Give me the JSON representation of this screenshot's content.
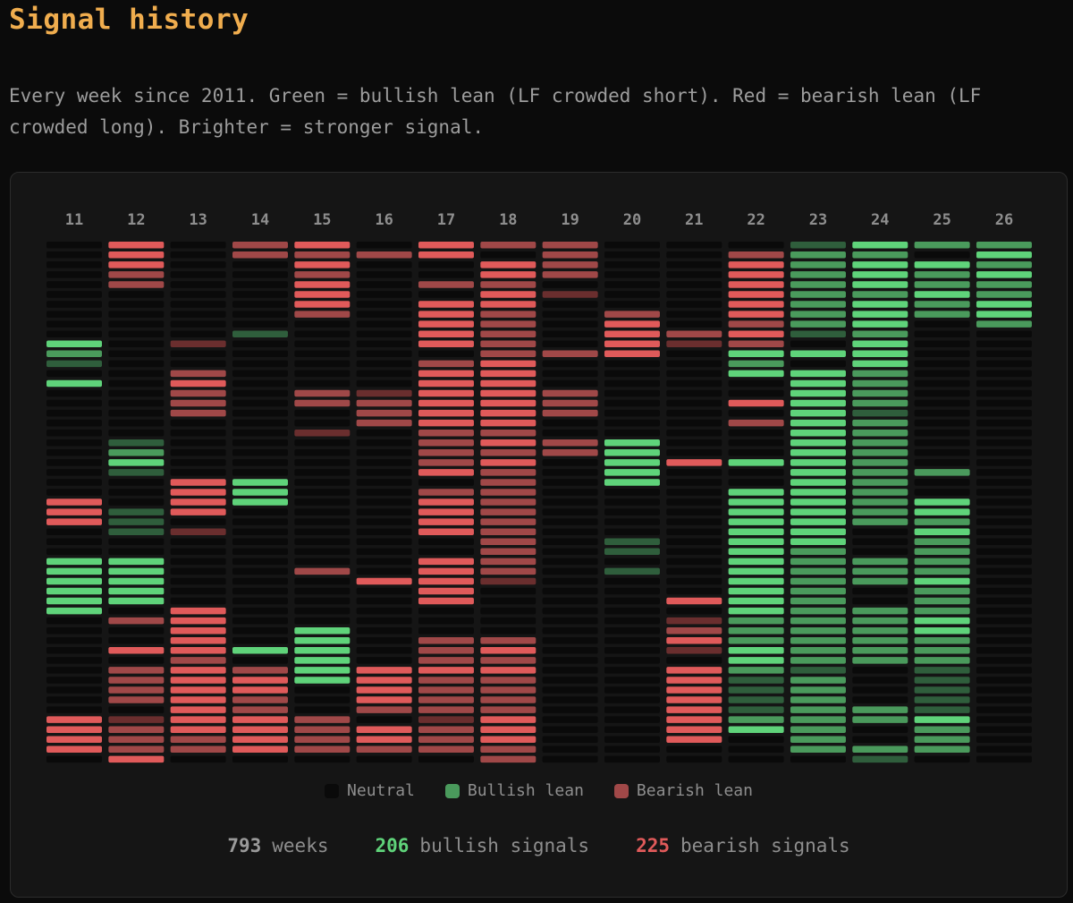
{
  "title": "Signal history",
  "subtitle": "Every week since 2011. Green = bullish lean (LF crowded short). Red = bearish lean (LF crowded long). Brighter = stronger signal.",
  "legend": [
    {
      "label": "Neutral",
      "color": "#0a0a0a"
    },
    {
      "label": "Bullish lean",
      "color": "#4a9a5c"
    },
    {
      "label": "Bearish lean",
      "color": "#a04848"
    }
  ],
  "stats": [
    {
      "value": "793",
      "label": "weeks",
      "color": "#9a9a9a"
    },
    {
      "value": "206",
      "label": "bullish signals",
      "color": "#5fd37a"
    },
    {
      "value": "225",
      "label": "bearish signals",
      "color": "#e05a5a"
    }
  ],
  "chart_data": {
    "type": "heatmap",
    "columns": [
      "11",
      "12",
      "13",
      "14",
      "15",
      "16",
      "17",
      "18",
      "19",
      "20",
      "21",
      "22",
      "23",
      "24",
      "25",
      "26"
    ],
    "encoding": {
      "0": "neutral",
      "1": "bullish lean",
      "2": "bullish lean (strong)",
      "-1": "bearish lean",
      "-2": "bearish lean (strong)"
    },
    "colors": {
      "0": "#0a0a0a",
      "1": "#2f5e3c",
      "2": "#4a9a5c",
      "3": "#5fd37a",
      "-1": "#6a2e2e",
      "-2": "#a04848",
      "-3": "#e05a5a"
    },
    "rows": [
      "0 -3 0 -2 -3 0 -3 -2 -2 0 0 0 1 3 2 2",
      "0 -3 0 -2 -2 -2 -3 0 -2 0 0 -2 2 2 0 3",
      "0 -3 0 0 -3 0 0 -3 -2 0 0 -3 2 3 3 2",
      "0 -2 0 0 -2 0 0 -3 -2 0 0 -3 2 3 2 3",
      "0 -2 0 0 -3 0 -2 -2 0 0 0 -3 2 3 2 2",
      "0 0 0 0 -3 0 0 -3 -1 0 0 -3 2 2 3 2",
      "0 0 0 0 -3 0 -3 -3 0 0 0 -3 2 3 2 3",
      "0 0 0 0 -2 0 -3 -2 0 -2 0 -3 2 3 2 3",
      "0 0 0 0 0 0 -3 -2 0 -3 0 -2 2 3 0 2",
      "0 0 0 1 0 0 -3 -2 0 -3 -2 -3 1 2 0 0",
      "3 0 -1 0 0 0 -3 -2 0 -3 -1 -2 0 3 0 0",
      "2 0 0 0 0 0 0 -2 -2 -3 0 3 3 3 0 0",
      "1 0 0 0 0 0 -2 -3 0 0 0 2 0 3 0 0",
      "0 0 -2 0 0 0 -3 -3 0 0 0 3 3 2 0 0",
      "3 0 -3 0 0 0 -3 -3 0 0 0 0 3 2 0 0",
      "0 0 -2 0 -2 -1 -3 -3 -2 0 0 0 3 2 0 0",
      "0 0 -2 0 -2 -2 -3 -3 -2 0 0 -3 3 2 0 0",
      "0 0 -2 0 0 -2 -3 -3 -2 0 0 0 3 1 0 0",
      "0 0 0 0 0 -2 -3 -3 0 0 0 -2 3 2 0 0",
      "0 0 0 0 -1 0 -2 -2 0 0 0 0 3 2 0 0",
      "0 1 0 0 0 0 -2 -3 -2 3 0 0 3 2 0 0",
      "0 2 0 0 0 0 -2 -2 -2 3 0 0 3 2 0 0",
      "0 3 0 0 0 0 -2 -3 0 3 -3 3 3 2 0 0",
      "0 1 0 0 0 0 -3 -2 0 3 0 0 3 2 2 0",
      "0 0 -3 3 0 0 0 -2 0 3 0 0 3 2 0 0",
      "0 0 -3 3 0 0 -2 -2 0 0 0 3 3 2 0 0",
      "-3 0 -3 3 0 0 -3 -2 0 0 0 3 3 2 3 0",
      "-3 1 -3 0 0 0 -3 -2 0 0 0 3 3 2 3 0",
      "-3 1 0 0 0 0 -3 -2 0 0 0 3 3 2 2 0",
      "0 1 -1 0 0 0 -3 -2 0 0 0 3 3 0 3 0",
      "0 0 0 0 0 0 0 -2 0 1 0 3 3 0 2 0",
      "0 0 0 0 0 0 0 -2 0 1 0 3 2 0 2 0",
      "3 3 0 0 0 0 -3 -2 0 0 0 3 2 2 2 0",
      "3 3 0 0 -2 0 -3 -2 0 1 0 3 2 2 2 0",
      "3 3 0 0 0 -3 -3 -1 0 0 0 3 2 2 3 0",
      "3 3 0 0 0 0 -3 0 0 0 0 3 2 0 2 0",
      "3 3 0 0 0 0 -3 0 0 0 -3 3 2 0 2 0",
      "3 0 -3 0 0 0 0 0 0 0 0 3 2 2 2 0",
      "0 -2 -3 0 0 0 0 0 0 0 -1 2 2 2 3 0",
      "0 0 -3 0 3 0 0 0 0 0 -2 2 2 2 3 0",
      "0 0 -3 0 3 0 -2 -2 0 0 -3 2 2 2 2 0",
      "0 -3 -3 3 3 0 -2 -3 0 0 -1 3 2 2 2 0",
      "0 0 -2 0 3 0 -2 -2 0 0 0 3 2 2 2 0",
      "0 -2 -3 -2 3 -3 -3 -3 0 0 -3 2 1 0 1 0",
      "0 -2 -3 -3 3 -3 -2 -2 0 0 -3 1 2 0 1 0",
      "0 -2 -3 -3 0 -3 -2 -2 0 0 -3 1 2 0 1 0",
      "0 -2 -3 -2 0 -3 -2 -2 0 0 -3 1 2 0 1 0",
      "0 0 -3 -2 0 -2 -2 -2 0 0 -3 1 2 2 1 0",
      "-3 -1 -3 -3 -2 0 -1 -3 0 0 -3 2 2 2 3 0",
      "-3 -2 -3 -3 -2 -3 -2 -3 0 0 -3 3 2 0 2 0",
      "-3 -2 -2 -3 -2 -3 -2 -3 0 0 -3 0 2 0 2 0",
      "-3 -2 -2 -3 -2 -2 -2 -2 0 0 0 0 2 2 2 0",
      "0 -3 0 0 0 0 0 -2 0 0 0 0 0 1 0 0"
    ]
  }
}
